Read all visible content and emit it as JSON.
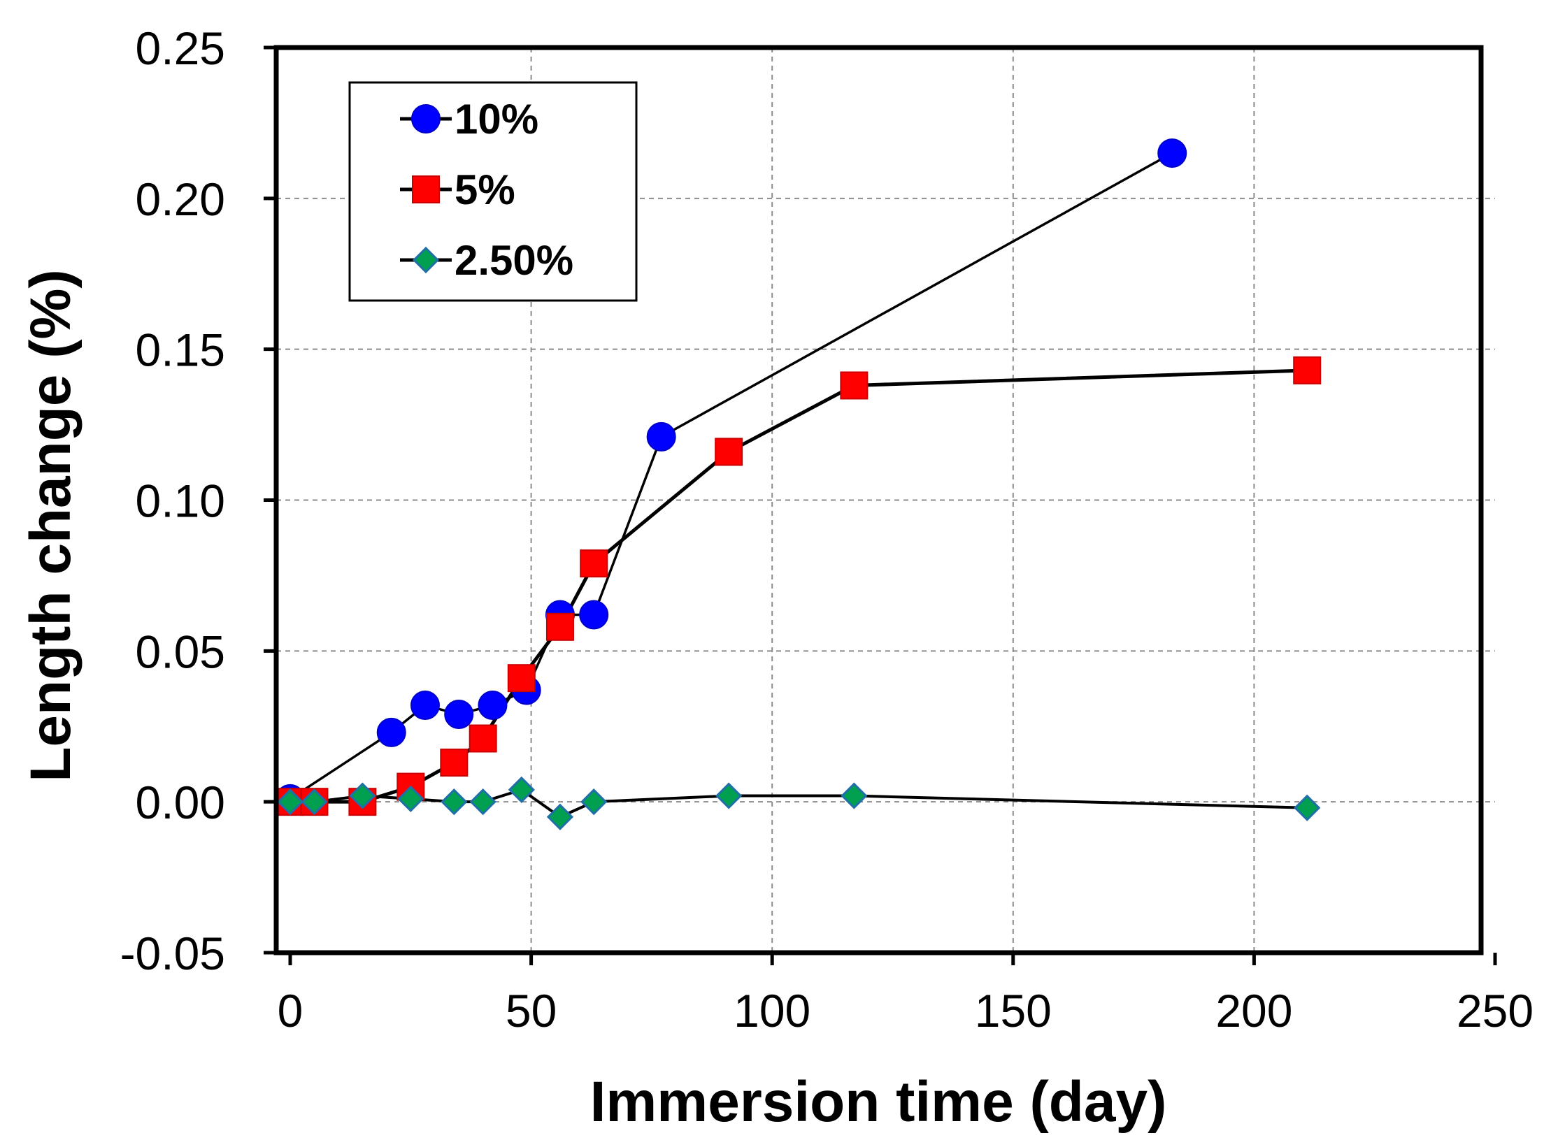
{
  "chart_data": {
    "type": "line",
    "title": "",
    "xlabel": "Immersion time (day)",
    "ylabel": "Length change (%)",
    "xlim": [
      0,
      250
    ],
    "ylim": [
      -0.05,
      0.25
    ],
    "x_ticks": [
      0,
      50,
      100,
      150,
      200,
      250
    ],
    "x_tick_labels": [
      "0",
      "50",
      "100",
      "150",
      "200",
      "250"
    ],
    "y_ticks": [
      -0.05,
      0,
      0.05,
      0.1,
      0.15,
      0.2,
      0.25
    ],
    "y_tick_labels": [
      "-0.05",
      "0.00",
      "0.05",
      "0.10",
      "0.15",
      "0.20",
      "0.25"
    ],
    "grid": true,
    "legend_position": "top-left",
    "series": [
      {
        "name": "10%",
        "marker": "circle",
        "color": "#0000ff",
        "x": [
          0,
          21,
          28,
          35,
          42,
          49,
          56,
          63,
          77,
          183
        ],
        "y": [
          0.001,
          0.023,
          0.032,
          0.029,
          0.032,
          0.037,
          0.062,
          0.062,
          0.121,
          0.215
        ]
      },
      {
        "name": "5%",
        "marker": "square",
        "color": "#ff0000",
        "x": [
          0,
          5,
          15,
          25,
          34,
          40,
          48,
          56,
          63,
          91,
          117,
          211
        ],
        "y": [
          0.0,
          0.0,
          0.0,
          0.005,
          0.013,
          0.021,
          0.041,
          0.058,
          0.079,
          0.116,
          0.138,
          0.143
        ]
      },
      {
        "name": "2.50%",
        "marker": "diamond",
        "color": "#00a050",
        "x": [
          0,
          5,
          15,
          25,
          34,
          40,
          48,
          56,
          63,
          91,
          117,
          211
        ],
        "y": [
          0.0,
          0.0,
          0.002,
          0.001,
          0.0,
          0.0,
          0.004,
          -0.005,
          0.0,
          0.002,
          0.002,
          -0.002
        ]
      }
    ]
  }
}
